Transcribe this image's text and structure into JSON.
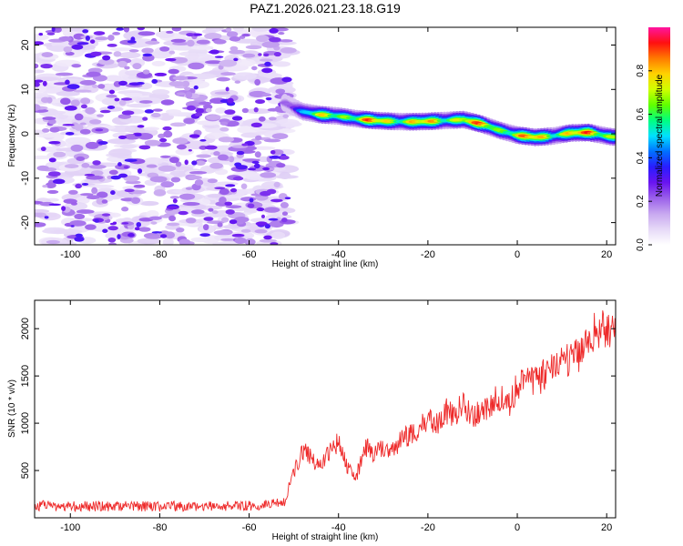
{
  "title": "PAZ1.2026.021.23.18.G19",
  "chart_data": [
    {
      "type": "heatmap",
      "title": "PAZ1.2026.021.23.18.G19",
      "xlabel": "Height of straight line (km)",
      "ylabel": "Frequency (Hz)",
      "xlim": [
        -108,
        22
      ],
      "ylim": [
        -25,
        24
      ],
      "xticks": [
        -100,
        -80,
        -60,
        -40,
        -20,
        0,
        20
      ],
      "yticks": [
        -20,
        -10,
        0,
        10,
        20
      ],
      "xtick_labels": [
        "-100",
        "-80",
        "-60",
        "-40",
        "-20",
        "0",
        "20"
      ],
      "ytick_labels": [
        "-20",
        "-10",
        "0",
        "10",
        "20"
      ],
      "noise_region": {
        "x": [
          -108,
          -51
        ],
        "y": [
          -25,
          24
        ],
        "amplitude": [
          0.0,
          0.15
        ]
      },
      "signal_ridge": {
        "x": [
          -52,
          -48,
          -44,
          -40,
          -36,
          -32,
          -28,
          -24,
          -20,
          -16,
          -12,
          -8,
          -4,
          0,
          4,
          8,
          12,
          16,
          20,
          22
        ],
        "freq_hz": [
          7,
          5,
          4.3,
          4,
          3.4,
          3,
          2.8,
          2.7,
          2.8,
          3.0,
          3.2,
          2.2,
          0.8,
          -0.3,
          -0.8,
          -0.5,
          0.2,
          0.3,
          -0.5,
          -0.8
        ],
        "peak_amplitude": [
          0.3,
          0.55,
          0.8,
          0.9,
          0.85,
          0.95,
          0.95,
          0.9,
          0.9,
          0.9,
          0.95,
          0.9,
          0.85,
          0.9,
          0.95,
          0.9,
          0.95,
          0.95,
          0.9,
          0.9
        ]
      },
      "colorbar": {
        "label": "Normalized spectral amplitude",
        "range": [
          0,
          1
        ],
        "ticks": [
          0.0,
          0.2,
          0.4,
          0.6,
          0.8
        ],
        "tick_labels": [
          "0.0",
          "0.2",
          "0.4",
          "0.6",
          "0.8"
        ],
        "colors": [
          "#ffffff",
          "#e6d9f7",
          "#c8a8f0",
          "#9b60ea",
          "#6a14f0",
          "#2a1cff",
          "#0070ff",
          "#00e0ff",
          "#00ff80",
          "#60ff00",
          "#d0ff00",
          "#ffd200",
          "#ff7a00",
          "#ff1010",
          "#ff14a0"
        ]
      }
    },
    {
      "type": "line",
      "xlabel": "Height of straight line (km)",
      "ylabel": "SNR (10 * v/v)",
      "xlim": [
        -108,
        22
      ],
      "ylim": [
        0,
        2300
      ],
      "xticks": [
        -100,
        -80,
        -60,
        -40,
        -20,
        0,
        20
      ],
      "yticks": [
        500,
        1000,
        1500,
        2000
      ],
      "xtick_labels": [
        "-100",
        "-80",
        "-60",
        "-40",
        "-20",
        "0",
        "20"
      ],
      "ytick_labels": [
        "500",
        "1000",
        "1500",
        "2000"
      ],
      "series": [
        {
          "name": "SNR",
          "color": "#ee2a2a",
          "x": [
            -108,
            -100,
            -90,
            -80,
            -70,
            -60,
            -55,
            -52,
            -50,
            -48,
            -46,
            -44,
            -42,
            -40,
            -38,
            -36,
            -34,
            -32,
            -30,
            -28,
            -26,
            -24,
            -22,
            -20,
            -18,
            -16,
            -14,
            -12,
            -10,
            -8,
            -6,
            -4,
            -2,
            0,
            2,
            4,
            6,
            8,
            10,
            12,
            14,
            16,
            18,
            20,
            22
          ],
          "values": [
            130,
            120,
            125,
            120,
            125,
            130,
            140,
            180,
            480,
            720,
            620,
            550,
            700,
            800,
            520,
            430,
            760,
            680,
            760,
            720,
            830,
            880,
            940,
            1030,
            980,
            1130,
            1080,
            1210,
            1060,
            1140,
            1210,
            1280,
            1160,
            1400,
            1460,
            1430,
            1510,
            1560,
            1620,
            1700,
            1720,
            1880,
            2000,
            2000,
            1900
          ]
        }
      ]
    }
  ]
}
